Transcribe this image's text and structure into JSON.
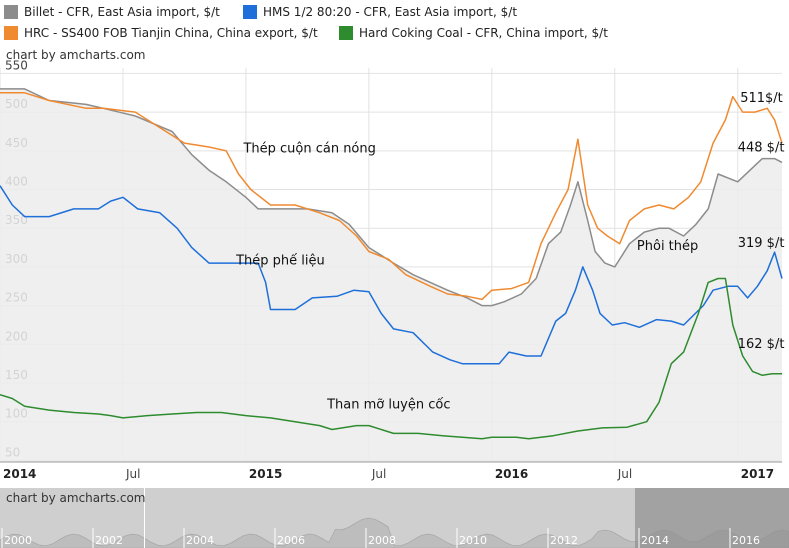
{
  "legend": [
    {
      "label": "Billet - CFR, East Asia import, $/t",
      "color": "#8c8c8c"
    },
    {
      "label": "HMS 1/2 80:20 - CFR, East Asia import, $/t",
      "color": "#1e6fd9"
    },
    {
      "label": "HRC - SS400 FOB Tianjin China, China export, $/t",
      "color": "#f08a30"
    },
    {
      "label": "Hard Coking Coal - CFR, China import, $/t",
      "color": "#2e8b2e"
    }
  ],
  "credit": "chart by amcharts.com",
  "chart_data": {
    "type": "line",
    "y_ticks": [
      50,
      100,
      150,
      200,
      250,
      300,
      350,
      400,
      450,
      500,
      550
    ],
    "ylim": [
      48,
      557
    ],
    "x_start": 2014.0,
    "x_end": 2017.18,
    "x_ticks": [
      {
        "x": 2014.0,
        "label": "2014",
        "bold": true
      },
      {
        "x": 2014.5,
        "label": "Jul",
        "bold": false
      },
      {
        "x": 2015.0,
        "label": "2015",
        "bold": true
      },
      {
        "x": 2015.5,
        "label": "Jul",
        "bold": false
      },
      {
        "x": 2016.0,
        "label": "2016",
        "bold": true
      },
      {
        "x": 2016.5,
        "label": "Jul",
        "bold": false
      },
      {
        "x": 2017.0,
        "label": "2017",
        "bold": true
      }
    ],
    "series": [
      {
        "name": "Billet - CFR, East Asia import, $/t",
        "color": "#8c8c8c",
        "fill": true,
        "points": [
          [
            2014.0,
            530
          ],
          [
            2014.1,
            530
          ],
          [
            2014.2,
            515
          ],
          [
            2014.35,
            510
          ],
          [
            2014.42,
            505
          ],
          [
            2014.55,
            495
          ],
          [
            2014.7,
            475
          ],
          [
            2014.78,
            445
          ],
          [
            2014.85,
            425
          ],
          [
            2014.92,
            410
          ],
          [
            2015.0,
            390
          ],
          [
            2015.05,
            375
          ],
          [
            2015.15,
            375
          ],
          [
            2015.25,
            375
          ],
          [
            2015.35,
            370
          ],
          [
            2015.42,
            355
          ],
          [
            2015.5,
            325
          ],
          [
            2015.55,
            315
          ],
          [
            2015.6,
            305
          ],
          [
            2015.68,
            290
          ],
          [
            2015.75,
            280
          ],
          [
            2015.82,
            270
          ],
          [
            2015.9,
            260
          ],
          [
            2015.96,
            250
          ],
          [
            2016.0,
            250
          ],
          [
            2016.05,
            255
          ],
          [
            2016.12,
            265
          ],
          [
            2016.18,
            285
          ],
          [
            2016.23,
            330
          ],
          [
            2016.28,
            345
          ],
          [
            2016.32,
            380
          ],
          [
            2016.35,
            410
          ],
          [
            2016.39,
            360
          ],
          [
            2016.42,
            320
          ],
          [
            2016.46,
            305
          ],
          [
            2016.5,
            300
          ],
          [
            2016.56,
            330
          ],
          [
            2016.62,
            345
          ],
          [
            2016.68,
            350
          ],
          [
            2016.72,
            350
          ],
          [
            2016.78,
            340
          ],
          [
            2016.83,
            355
          ],
          [
            2016.88,
            375
          ],
          [
            2016.92,
            420
          ],
          [
            2016.96,
            415
          ],
          [
            2017.0,
            410
          ],
          [
            2017.05,
            425
          ],
          [
            2017.1,
            440
          ],
          [
            2017.15,
            440
          ],
          [
            2017.18,
            435
          ]
        ]
      },
      {
        "name": "HRC - SS400 FOB Tianjin China, China export, $/t",
        "color": "#f08a30",
        "fill": false,
        "points": [
          [
            2014.0,
            525
          ],
          [
            2014.1,
            525
          ],
          [
            2014.2,
            515
          ],
          [
            2014.35,
            505
          ],
          [
            2014.42,
            505
          ],
          [
            2014.55,
            500
          ],
          [
            2014.65,
            480
          ],
          [
            2014.75,
            460
          ],
          [
            2014.85,
            455
          ],
          [
            2014.92,
            450
          ],
          [
            2014.97,
            420
          ],
          [
            2015.02,
            400
          ],
          [
            2015.1,
            380
          ],
          [
            2015.2,
            380
          ],
          [
            2015.3,
            370
          ],
          [
            2015.38,
            360
          ],
          [
            2015.45,
            340
          ],
          [
            2015.5,
            320
          ],
          [
            2015.58,
            310
          ],
          [
            2015.65,
            290
          ],
          [
            2015.75,
            275
          ],
          [
            2015.82,
            265
          ],
          [
            2015.9,
            262
          ],
          [
            2015.96,
            258
          ],
          [
            2016.0,
            270
          ],
          [
            2016.08,
            272
          ],
          [
            2016.15,
            280
          ],
          [
            2016.2,
            330
          ],
          [
            2016.26,
            370
          ],
          [
            2016.31,
            400
          ],
          [
            2016.35,
            465
          ],
          [
            2016.39,
            380
          ],
          [
            2016.43,
            350
          ],
          [
            2016.47,
            340
          ],
          [
            2016.52,
            330
          ],
          [
            2016.56,
            360
          ],
          [
            2016.62,
            375
          ],
          [
            2016.68,
            380
          ],
          [
            2016.74,
            375
          ],
          [
            2016.8,
            390
          ],
          [
            2016.85,
            410
          ],
          [
            2016.9,
            460
          ],
          [
            2016.95,
            490
          ],
          [
            2016.98,
            520
          ],
          [
            2017.02,
            500
          ],
          [
            2017.07,
            500
          ],
          [
            2017.12,
            505
          ],
          [
            2017.15,
            490
          ],
          [
            2017.18,
            460
          ]
        ]
      },
      {
        "name": "HMS 1/2 80:20 - CFR, East Asia import, $/t",
        "color": "#1e6fd9",
        "fill": false,
        "points": [
          [
            2014.0,
            405
          ],
          [
            2014.05,
            380
          ],
          [
            2014.1,
            365
          ],
          [
            2014.2,
            365
          ],
          [
            2014.3,
            375
          ],
          [
            2014.4,
            375
          ],
          [
            2014.45,
            385
          ],
          [
            2014.5,
            390
          ],
          [
            2014.56,
            375
          ],
          [
            2014.65,
            370
          ],
          [
            2014.72,
            350
          ],
          [
            2014.78,
            325
          ],
          [
            2014.85,
            305
          ],
          [
            2014.95,
            305
          ],
          [
            2015.05,
            305
          ],
          [
            2015.08,
            280
          ],
          [
            2015.1,
            245
          ],
          [
            2015.2,
            245
          ],
          [
            2015.27,
            260
          ],
          [
            2015.37,
            262
          ],
          [
            2015.44,
            270
          ],
          [
            2015.5,
            268
          ],
          [
            2015.55,
            240
          ],
          [
            2015.6,
            220
          ],
          [
            2015.68,
            215
          ],
          [
            2015.76,
            190
          ],
          [
            2015.83,
            180
          ],
          [
            2015.88,
            175
          ],
          [
            2015.97,
            175
          ],
          [
            2016.03,
            175
          ],
          [
            2016.07,
            190
          ],
          [
            2016.14,
            185
          ],
          [
            2016.2,
            185
          ],
          [
            2016.26,
            230
          ],
          [
            2016.3,
            240
          ],
          [
            2016.34,
            270
          ],
          [
            2016.37,
            300
          ],
          [
            2016.41,
            270
          ],
          [
            2016.44,
            240
          ],
          [
            2016.49,
            225
          ],
          [
            2016.54,
            228
          ],
          [
            2016.6,
            222
          ],
          [
            2016.67,
            232
          ],
          [
            2016.73,
            230
          ],
          [
            2016.78,
            225
          ],
          [
            2016.86,
            250
          ],
          [
            2016.9,
            270
          ],
          [
            2016.96,
            275
          ],
          [
            2017.0,
            275
          ],
          [
            2017.04,
            260
          ],
          [
            2017.08,
            275
          ],
          [
            2017.12,
            295
          ],
          [
            2017.15,
            319
          ],
          [
            2017.18,
            285
          ]
        ]
      },
      {
        "name": "Hard Coking Coal - CFR, China import, $/t",
        "color": "#2e8b2e",
        "fill": false,
        "points": [
          [
            2014.0,
            135
          ],
          [
            2014.05,
            130
          ],
          [
            2014.1,
            120
          ],
          [
            2014.2,
            115
          ],
          [
            2014.3,
            112
          ],
          [
            2014.4,
            110
          ],
          [
            2014.45,
            108
          ],
          [
            2014.5,
            105
          ],
          [
            2014.6,
            108
          ],
          [
            2014.7,
            110
          ],
          [
            2014.8,
            112
          ],
          [
            2014.9,
            112
          ],
          [
            2015.0,
            108
          ],
          [
            2015.1,
            105
          ],
          [
            2015.2,
            100
          ],
          [
            2015.3,
            95
          ],
          [
            2015.35,
            90
          ],
          [
            2015.45,
            95
          ],
          [
            2015.5,
            95
          ],
          [
            2015.6,
            85
          ],
          [
            2015.7,
            85
          ],
          [
            2015.8,
            82
          ],
          [
            2015.88,
            80
          ],
          [
            2015.96,
            78
          ],
          [
            2016.0,
            80
          ],
          [
            2016.1,
            80
          ],
          [
            2016.15,
            78
          ],
          [
            2016.25,
            82
          ],
          [
            2016.35,
            88
          ],
          [
            2016.45,
            92
          ],
          [
            2016.55,
            93
          ],
          [
            2016.63,
            100
          ],
          [
            2016.68,
            125
          ],
          [
            2016.73,
            175
          ],
          [
            2016.78,
            190
          ],
          [
            2016.84,
            240
          ],
          [
            2016.88,
            280
          ],
          [
            2016.92,
            285
          ],
          [
            2016.95,
            285
          ],
          [
            2016.98,
            225
          ],
          [
            2017.02,
            185
          ],
          [
            2017.06,
            165
          ],
          [
            2017.1,
            160
          ],
          [
            2017.14,
            162
          ],
          [
            2017.18,
            162
          ]
        ]
      }
    ],
    "annotations": [
      {
        "text": "Thép cuộn cán nóng",
        "x": 2014.99,
        "y": 448
      },
      {
        "text": "Thép phế liệu",
        "x": 2014.96,
        "y": 303
      },
      {
        "text": "Than mỡ luyện cốc",
        "x": 2015.33,
        "y": 117
      },
      {
        "text": "Phôi thép",
        "x": 2016.59,
        "y": 322
      },
      {
        "text": "511$/t",
        "x": 2017.01,
        "y": 513
      },
      {
        "text": "448 $/t",
        "x": 2017.0,
        "y": 449
      },
      {
        "text": "319 $/t",
        "x": 2017.0,
        "y": 326
      },
      {
        "text": "162 $/t",
        "x": 2017.0,
        "y": 195
      }
    ]
  },
  "navigator": {
    "labels": [
      "2000",
      "2002",
      "2004",
      "2006",
      "2008",
      "2010",
      "2012",
      "2014",
      "2016"
    ]
  }
}
